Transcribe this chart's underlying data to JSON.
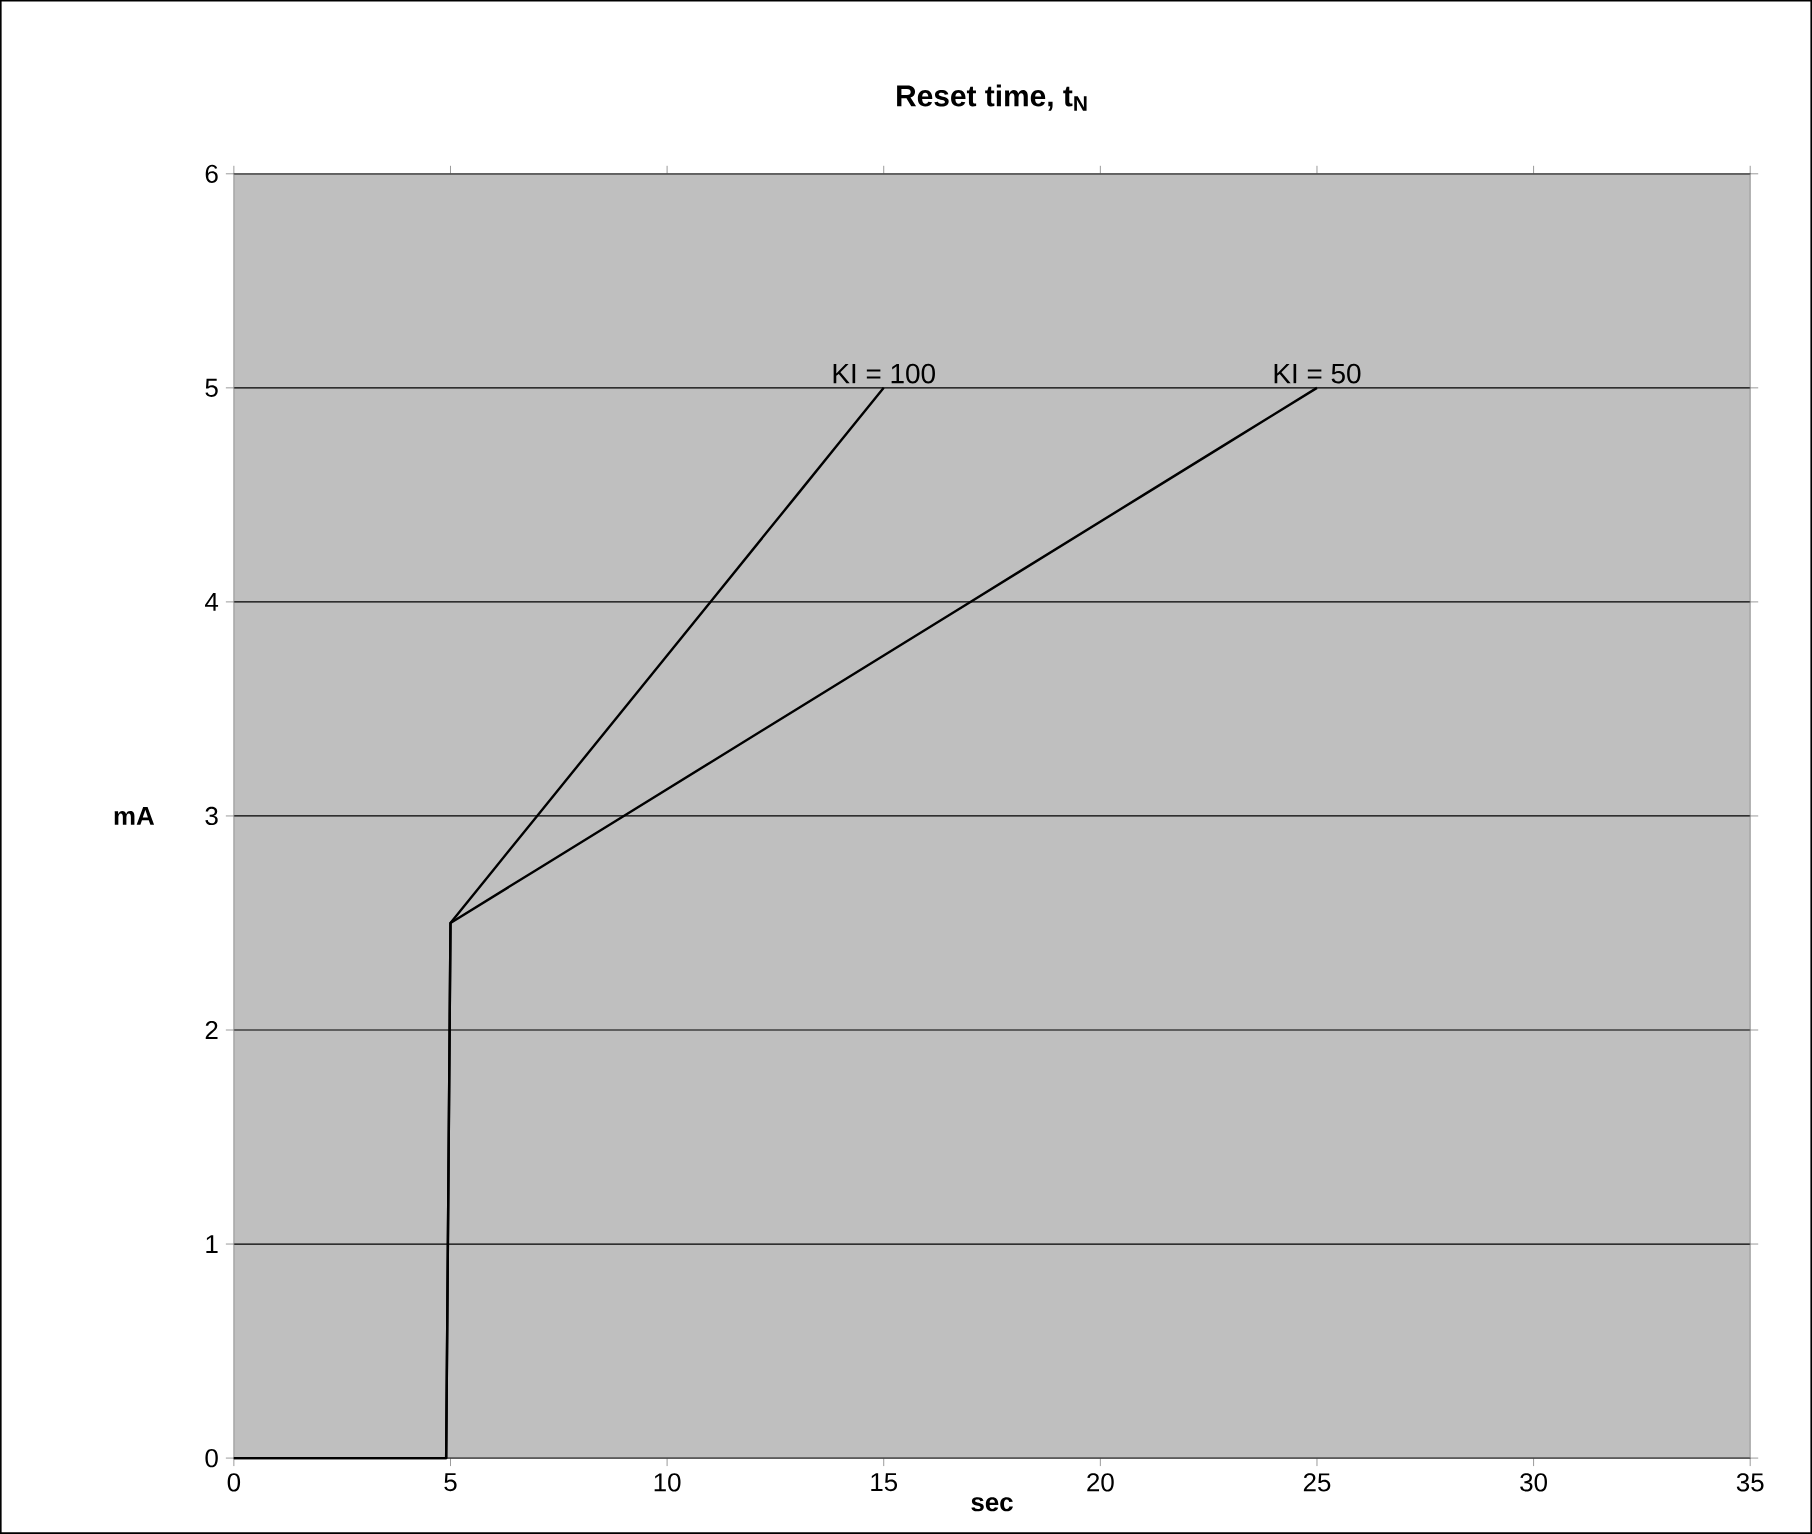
{
  "chart_data": {
    "type": "line",
    "title": "Reset time, t$_{N}$",
    "xlabel": "sec",
    "ylabel": "mA",
    "series": [
      {
        "name": "KI = 100",
        "color": "#000000",
        "x": [
          0,
          4.9,
          5,
          6,
          7,
          8,
          9,
          10,
          11,
          12,
          13,
          14,
          15
        ],
        "values": [
          0,
          0,
          2.5,
          2.75,
          3,
          3.25,
          3.5,
          3.75,
          4,
          4.25,
          4.5,
          4.75,
          5
        ]
      },
      {
        "name": "KI = 50",
        "color": "#000000",
        "x": [
          0,
          4.9,
          5,
          7,
          9,
          11,
          13,
          15,
          17,
          19,
          21,
          23,
          25
        ],
        "values": [
          0,
          0,
          2.5,
          2.75,
          3,
          3.25,
          3.5,
          3.75,
          4,
          4.25,
          4.5,
          4.75,
          5
        ]
      }
    ],
    "xlim": [
      0,
      35
    ],
    "xticks": [
      0,
      5,
      10,
      15,
      20,
      25,
      30,
      35
    ],
    "ylim": [
      0,
      6
    ],
    "yticks": [
      0,
      1,
      2,
      3,
      4,
      5,
      6
    ],
    "grid": "y",
    "legend": false,
    "marker": "none",
    "line_style": "solid"
  }
}
